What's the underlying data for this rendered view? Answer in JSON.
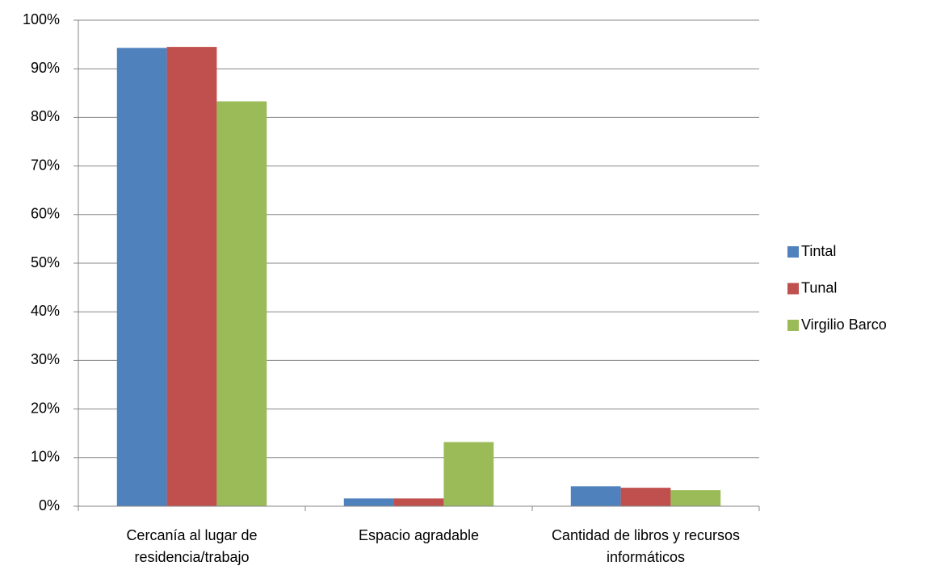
{
  "chart_data": {
    "type": "bar",
    "categories": [
      "Cercanía al lugar de residencia/trabajo",
      "Espacio agradable",
      "Cantidad de libros y recursos informáticos"
    ],
    "series": [
      {
        "name": "Tintal",
        "color": "#4f81bd",
        "values": [
          94.3,
          1.6,
          4.1
        ]
      },
      {
        "name": "Tunal",
        "color": "#c0504d",
        "values": [
          94.5,
          1.6,
          3.8
        ]
      },
      {
        "name": "Virgilio Barco",
        "color": "#9bbb59",
        "values": [
          83.3,
          13.2,
          3.3
        ]
      }
    ],
    "ylim": [
      0,
      100
    ],
    "yticks": [
      {
        "value": 0,
        "label": "0%"
      },
      {
        "value": 10,
        "label": "10%"
      },
      {
        "value": 20,
        "label": "20%"
      },
      {
        "value": 30,
        "label": "30%"
      },
      {
        "value": 40,
        "label": "40%"
      },
      {
        "value": 50,
        "label": "50%"
      },
      {
        "value": 60,
        "label": "60%"
      },
      {
        "value": 70,
        "label": "70%"
      },
      {
        "value": 80,
        "label": "80%"
      },
      {
        "value": 90,
        "label": "90%"
      },
      {
        "value": 100,
        "label": "100%"
      }
    ],
    "grid": true,
    "legend": "right"
  }
}
